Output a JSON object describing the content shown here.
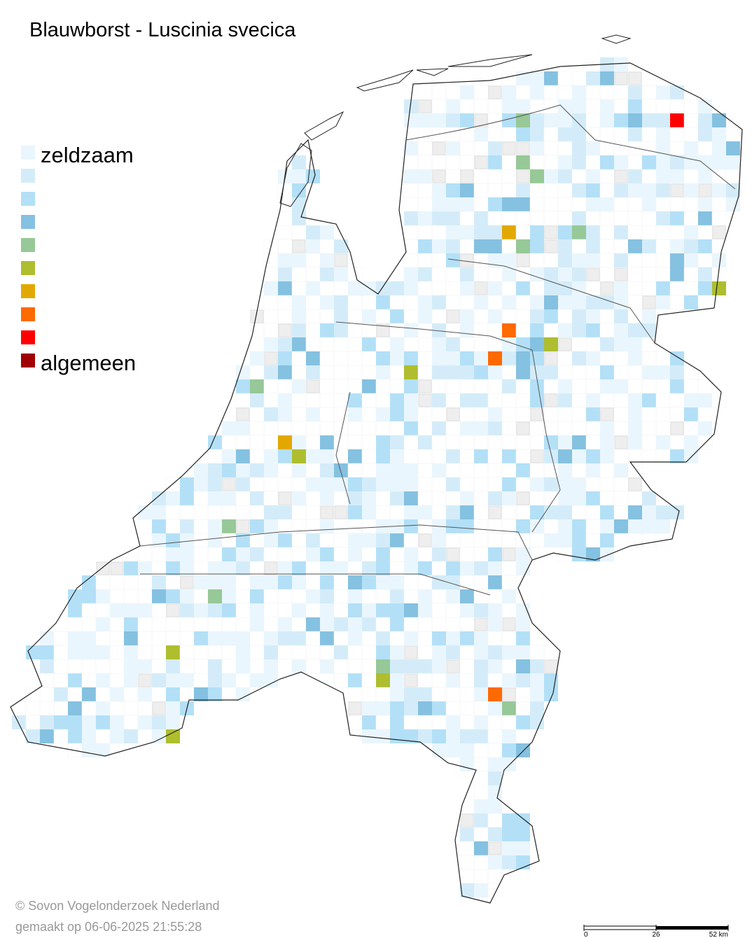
{
  "header": {
    "title": "Blauwborst - Luscinia svecica"
  },
  "legend": {
    "low_label": "zeldzaam",
    "high_label": "algemeen",
    "colors": [
      "#eaf6fd",
      "#d4ecf9",
      "#b3e0f7",
      "#85c1e0",
      "#97c897",
      "#aebe2f",
      "#e3a800",
      "#ff6a00",
      "#ff0000",
      "#a00000"
    ]
  },
  "footer": {
    "credit": "© Sovon Vogelonderzoek Nederland",
    "made": "gemaakt op 06-06-2025 21:55:28"
  },
  "scale_bar": {
    "ticks": [
      0,
      26,
      {
        "value": 52,
        "label": "52 km"
      }
    ]
  }
}
